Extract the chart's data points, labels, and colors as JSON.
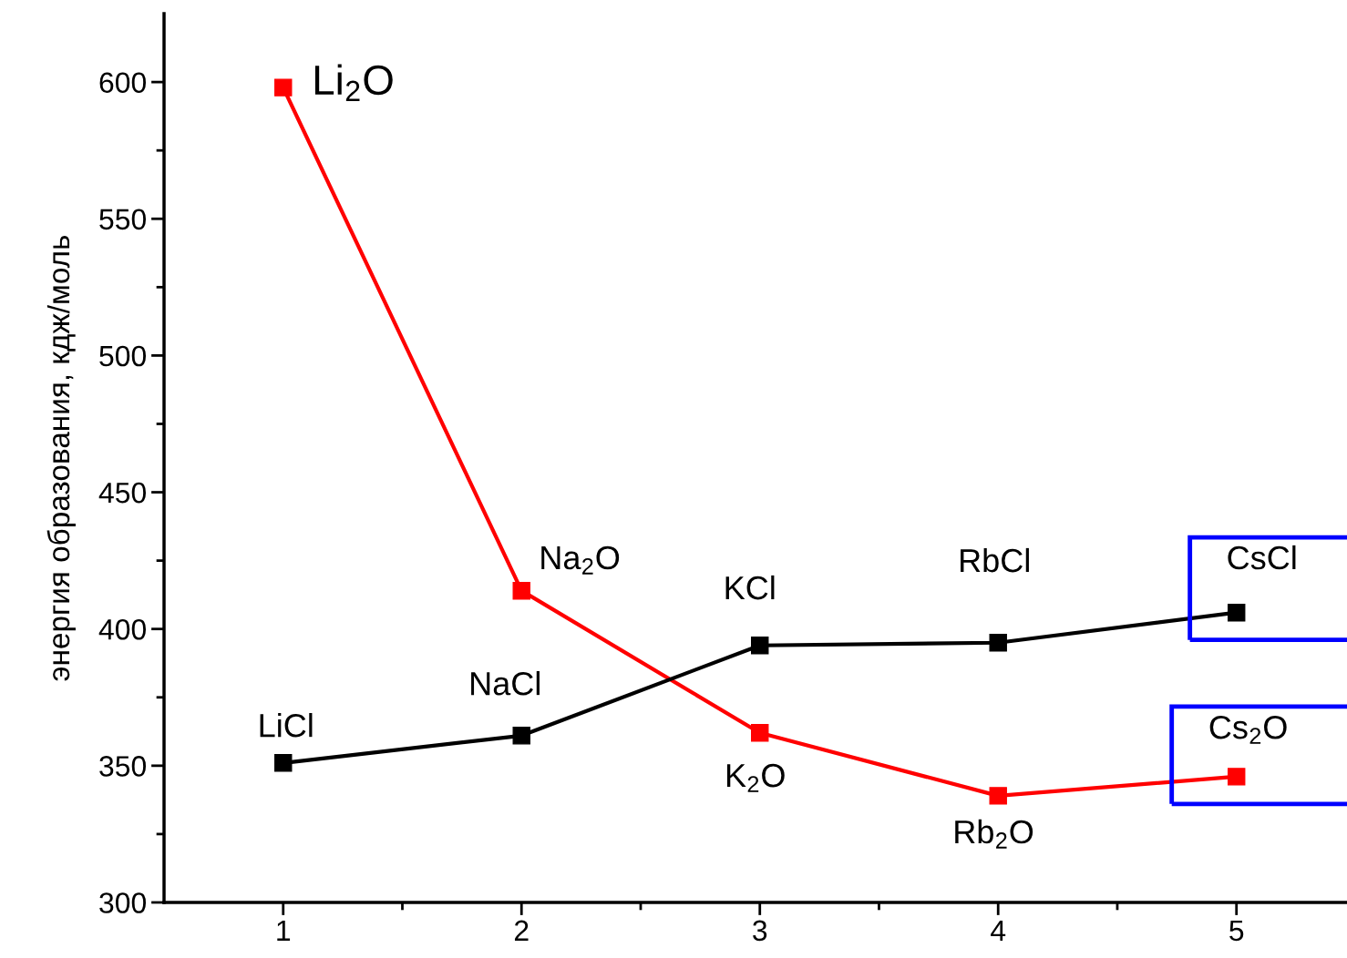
{
  "chart_data": {
    "type": "line",
    "ylabel": "энергия образования, кдж/моль",
    "x": [
      1,
      2,
      3,
      4,
      5
    ],
    "series": [
      {
        "color": "#ff0000",
        "values": [
          598,
          414,
          362,
          339,
          346
        ]
      },
      {
        "color": "#000000",
        "values": [
          351,
          361,
          394,
          395,
          406
        ]
      }
    ],
    "xlim": [
      0.5,
      5.46
    ],
    "ylim": [
      300,
      625
    ],
    "xticks": [
      1,
      {
        "value": 1.5,
        "label": null
      },
      2,
      {
        "value": 2.5,
        "label": null
      },
      3,
      {
        "value": 3.5,
        "label": null
      },
      4,
      {
        "value": 4.5,
        "label": null
      },
      5
    ],
    "yticks": [
      300,
      {
        "value": 325,
        "label": null
      },
      350,
      {
        "value": 375,
        "label": null
      },
      400,
      {
        "value": 425,
        "label": null
      },
      450,
      {
        "value": 475,
        "label": null
      },
      500,
      {
        "value": 525,
        "label": null
      },
      550,
      {
        "value": 575,
        "label": null
      },
      600
    ],
    "annotations": [
      {
        "text": "Li$_{2}$O",
        "x": 1,
        "y": 598
      },
      {
        "text": "Na$_{2}$O",
        "x": 2,
        "y": 414
      },
      {
        "text": "K$_{2}$O",
        "x": 3,
        "y": 362
      },
      {
        "text": "Rb$_{2}$O",
        "x": 4,
        "y": 339
      },
      {
        "text": "Cs$_{2}$O",
        "x": 5,
        "y": 346
      },
      {
        "text": "LiCl",
        "x": 1,
        "y": 351
      },
      {
        "text": "NaCl",
        "x": 2,
        "y": 361
      },
      {
        "text": "KCl",
        "x": 3,
        "y": 394
      },
      {
        "text": "RbCl",
        "x": 4,
        "y": 395
      },
      {
        "text": "CsCl",
        "x": 5,
        "y": 406
      }
    ],
    "grid": false,
    "marker": "square",
    "line_style": "solid"
  }
}
